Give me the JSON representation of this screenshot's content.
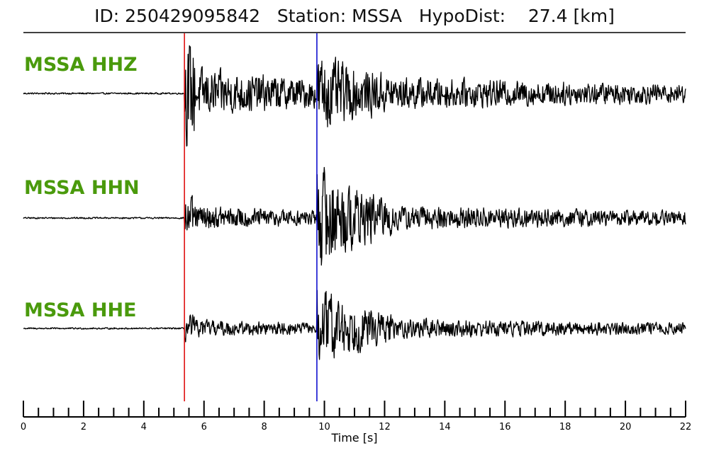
{
  "header": {
    "title_id_label": "ID:",
    "event_id": "250429095842",
    "station_label": "Station:",
    "station": "MSSA",
    "hypodist_label": "HypoDist:",
    "hypodist_value": "27.4",
    "hypodist_unit": "[km]"
  },
  "chart_data": {
    "type": "line",
    "title": "ID: 250429095842   Station: MSSA   HypoDist:    27.4 [km]",
    "xlabel": "Time [s]",
    "ylabel": "",
    "xlim": [
      0,
      22
    ],
    "x_ticks": [
      0,
      2,
      4,
      6,
      8,
      10,
      12,
      14,
      16,
      18,
      20,
      22
    ],
    "x_tick_labels": [
      "0",
      "2",
      "4",
      "6",
      "8",
      "10",
      "12",
      "14",
      "16",
      "18",
      "20",
      "22"
    ],
    "minor_tick_step": 0.5,
    "grid": false,
    "label_color": "#4a9a0c",
    "trace_color": "#000000",
    "picks": [
      {
        "phase": "P",
        "time": 5.35,
        "color": "#dd0000"
      },
      {
        "phase": "S",
        "time": 9.75,
        "color": "#0000cc"
      }
    ],
    "series": [
      {
        "name": "MSSA HHZ",
        "offset": 0.0,
        "noise_amp": 0.04,
        "p_amp": 1.0,
        "s_amp": 0.55,
        "coda_amp": 0.28,
        "slope": 0.0
      },
      {
        "name": "MSSA HHN",
        "offset": 0.0,
        "noise_amp": 0.05,
        "p_amp": 0.45,
        "s_amp": 1.0,
        "coda_amp": 0.22,
        "slope": 0.0
      },
      {
        "name": "MSSA HHE",
        "offset": 0.0,
        "noise_amp": 0.08,
        "p_amp": 0.35,
        "s_amp": 0.9,
        "coda_amp": 0.2,
        "slope": 0.0
      }
    ]
  }
}
